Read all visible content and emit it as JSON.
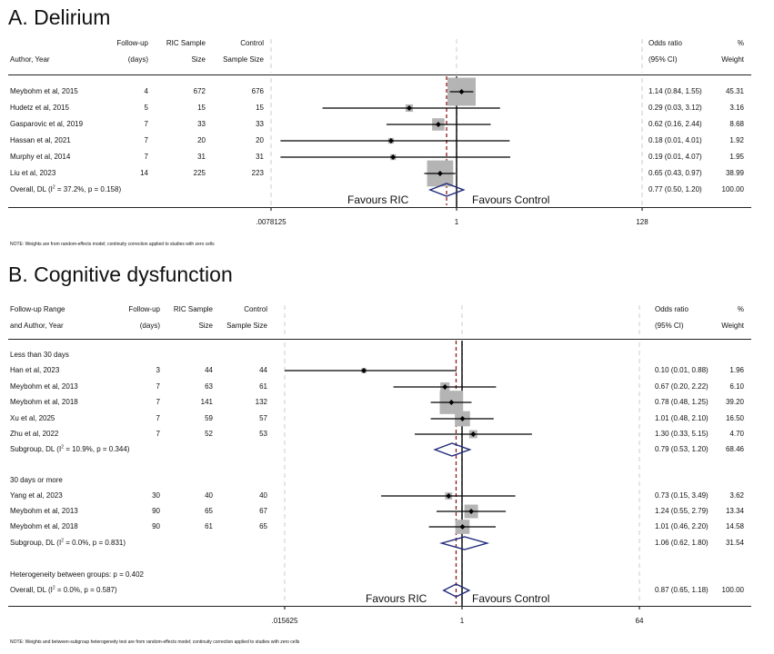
{
  "chart_data": [
    {
      "type": "forest",
      "title": "A. Delirium",
      "headers": {
        "study": [
          "",
          "Author, Year"
        ],
        "followup": [
          "Follow-up",
          "(days)"
        ],
        "ric": [
          "RIC Sample",
          "Size"
        ],
        "control": [
          "Control",
          "Sample Size"
        ],
        "or": [
          "Odds ratio",
          "(95% CI)"
        ],
        "weight": [
          "%",
          "Weight"
        ]
      },
      "x_scale": "log2",
      "xlim": [
        0.0078125,
        128
      ],
      "ticks": [
        {
          "value": 0.0078125,
          "label": ".0078125"
        },
        {
          "value": 1,
          "label": "1"
        },
        {
          "value": 128,
          "label": "128"
        }
      ],
      "favours_left": "Favours RIC",
      "favours_right": "Favours Control",
      "studies": [
        {
          "label": "Meybohm et al, 2015",
          "followup": "4",
          "ric": "672",
          "control": "676",
          "or": 1.14,
          "lo": 0.84,
          "hi": 1.55,
          "ci_text": "1.14 (0.84, 1.55)",
          "weight": "45.31"
        },
        {
          "label": "Hudetz et al, 2015",
          "followup": "5",
          "ric": "15",
          "control": "15",
          "or": 0.29,
          "lo": 0.03,
          "hi": 3.12,
          "ci_text": "0.29 (0.03, 3.12)",
          "weight": "3.16"
        },
        {
          "label": "Gasparovic et al, 2019",
          "followup": "7",
          "ric": "33",
          "control": "33",
          "or": 0.62,
          "lo": 0.16,
          "hi": 2.44,
          "ci_text": "0.62 (0.16, 2.44)",
          "weight": "8.68"
        },
        {
          "label": "Hassan et al, 2021",
          "followup": "7",
          "ric": "20",
          "control": "20",
          "or": 0.18,
          "lo": 0.01,
          "hi": 4.01,
          "ci_text": "0.18 (0.01, 4.01)",
          "weight": "1.92"
        },
        {
          "label": "Murphy et al, 2014",
          "followup": "7",
          "ric": "31",
          "control": "31",
          "or": 0.19,
          "lo": 0.01,
          "hi": 4.07,
          "ci_text": "0.19 (0.01, 4.07)",
          "weight": "1.95"
        },
        {
          "label": "Liu et al, 2023",
          "followup": "14",
          "ric": "225",
          "control": "223",
          "or": 0.65,
          "lo": 0.43,
          "hi": 0.97,
          "ci_text": "0.65 (0.43, 0.97)",
          "weight": "38.99"
        }
      ],
      "overall": {
        "label_pre": "Overall, DL (I",
        "label_sup": "2",
        "label_post": " = 37.2%, p = 0.158)",
        "or": 0.77,
        "lo": 0.5,
        "hi": 1.2,
        "ci_text": "0.77 (0.50, 1.20)",
        "weight": "100.00"
      },
      "note": "NOTE: Weights are from random-effects model; continuity correction applied to studies with zero cells"
    },
    {
      "type": "forest",
      "title": "B. Cognitive dysfunction",
      "headers": {
        "study": [
          "Follow-up Range",
          "and Author, Year"
        ],
        "followup": [
          "Follow-up",
          "(days)"
        ],
        "ric": [
          "RIC Sample",
          "Size"
        ],
        "control": [
          "Control",
          "Sample Size"
        ],
        "or": [
          "Odds ratio",
          "(95% CI)"
        ],
        "weight": [
          "%",
          "Weight"
        ]
      },
      "x_scale": "log2",
      "xlim": [
        0.015625,
        64
      ],
      "ticks": [
        {
          "value": 0.015625,
          "label": ".015625"
        },
        {
          "value": 1,
          "label": "1"
        },
        {
          "value": 64,
          "label": "64"
        }
      ],
      "favours_left": "Favours RIC",
      "favours_right": "Favours Control",
      "groups": [
        {
          "name": "Less than 30 days",
          "studies": [
            {
              "label": "Han et al, 2023",
              "followup": "3",
              "ric": "44",
              "control": "44",
              "or": 0.1,
              "lo": 0.01,
              "hi": 0.88,
              "ci_text": "0.10 (0.01, 0.88)",
              "weight": "1.96"
            },
            {
              "label": "Meybohm et al, 2013",
              "followup": "7",
              "ric": "63",
              "control": "61",
              "or": 0.67,
              "lo": 0.2,
              "hi": 2.22,
              "ci_text": "0.67 (0.20, 2.22)",
              "weight": "6.10"
            },
            {
              "label": "Meybohm et al, 2018",
              "followup": "7",
              "ric": "141",
              "control": "132",
              "or": 0.78,
              "lo": 0.48,
              "hi": 1.25,
              "ci_text": "0.78 (0.48, 1.25)",
              "weight": "39.20"
            },
            {
              "label": "Xu et al, 2025",
              "followup": "7",
              "ric": "59",
              "control": "57",
              "or": 1.01,
              "lo": 0.48,
              "hi": 2.1,
              "ci_text": "1.01 (0.48, 2.10)",
              "weight": "16.50"
            },
            {
              "label": "Zhu et al, 2022",
              "followup": "7",
              "ric": "52",
              "control": "53",
              "or": 1.3,
              "lo": 0.33,
              "hi": 5.15,
              "ci_text": "1.30 (0.33, 5.15)",
              "weight": "4.70"
            }
          ],
          "subgroup": {
            "label_pre": "Subgroup, DL (I",
            "label_sup": "2",
            "label_post": " = 10.9%, p = 0.344)",
            "or": 0.79,
            "lo": 0.53,
            "hi": 1.2,
            "ci_text": "0.79 (0.53, 1.20)",
            "weight": "68.46"
          }
        },
        {
          "name": "30 days or more",
          "studies": [
            {
              "label": "Yang et al, 2023",
              "followup": "30",
              "ric": "40",
              "control": "40",
              "or": 0.73,
              "lo": 0.15,
              "hi": 3.49,
              "ci_text": "0.73 (0.15, 3.49)",
              "weight": "3.62"
            },
            {
              "label": "Meybohm et al, 2013",
              "followup": "90",
              "ric": "65",
              "control": "67",
              "or": 1.24,
              "lo": 0.55,
              "hi": 2.79,
              "ci_text": "1.24 (0.55, 2.79)",
              "weight": "13.34"
            },
            {
              "label": "Meybohm et al, 2018",
              "followup": "90",
              "ric": "61",
              "control": "65",
              "or": 1.01,
              "lo": 0.46,
              "hi": 2.2,
              "ci_text": "1.01 (0.46, 2.20)",
              "weight": "14.58"
            }
          ],
          "subgroup": {
            "label_pre": "Subgroup, DL (I",
            "label_sup": "2",
            "label_post": " = 0.0%, p = 0.831)",
            "or": 1.06,
            "lo": 0.62,
            "hi": 1.8,
            "ci_text": "1.06 (0.62, 1.80)",
            "weight": "31.54"
          }
        }
      ],
      "heterogeneity": "Heterogeneity between groups: p = 0.402",
      "overall": {
        "label_pre": "Overall, DL (I",
        "label_sup": "2",
        "label_post": " = 0.0%, p = 0.587)",
        "or": 0.87,
        "lo": 0.65,
        "hi": 1.18,
        "ci_text": "0.87 (0.65, 1.18)",
        "weight": "100.00"
      },
      "note": "NOTE: Weights and between-subgroup heterogeneity test are from random-effects model; continuity correction applied to studies with zero cells"
    }
  ],
  "colors": {
    "line": "#000000",
    "box": "#b4b4b4",
    "diamond": "#1f2a7a",
    "ref": "#8b1a1a",
    "dashed_bg": "#e6e6e6"
  }
}
